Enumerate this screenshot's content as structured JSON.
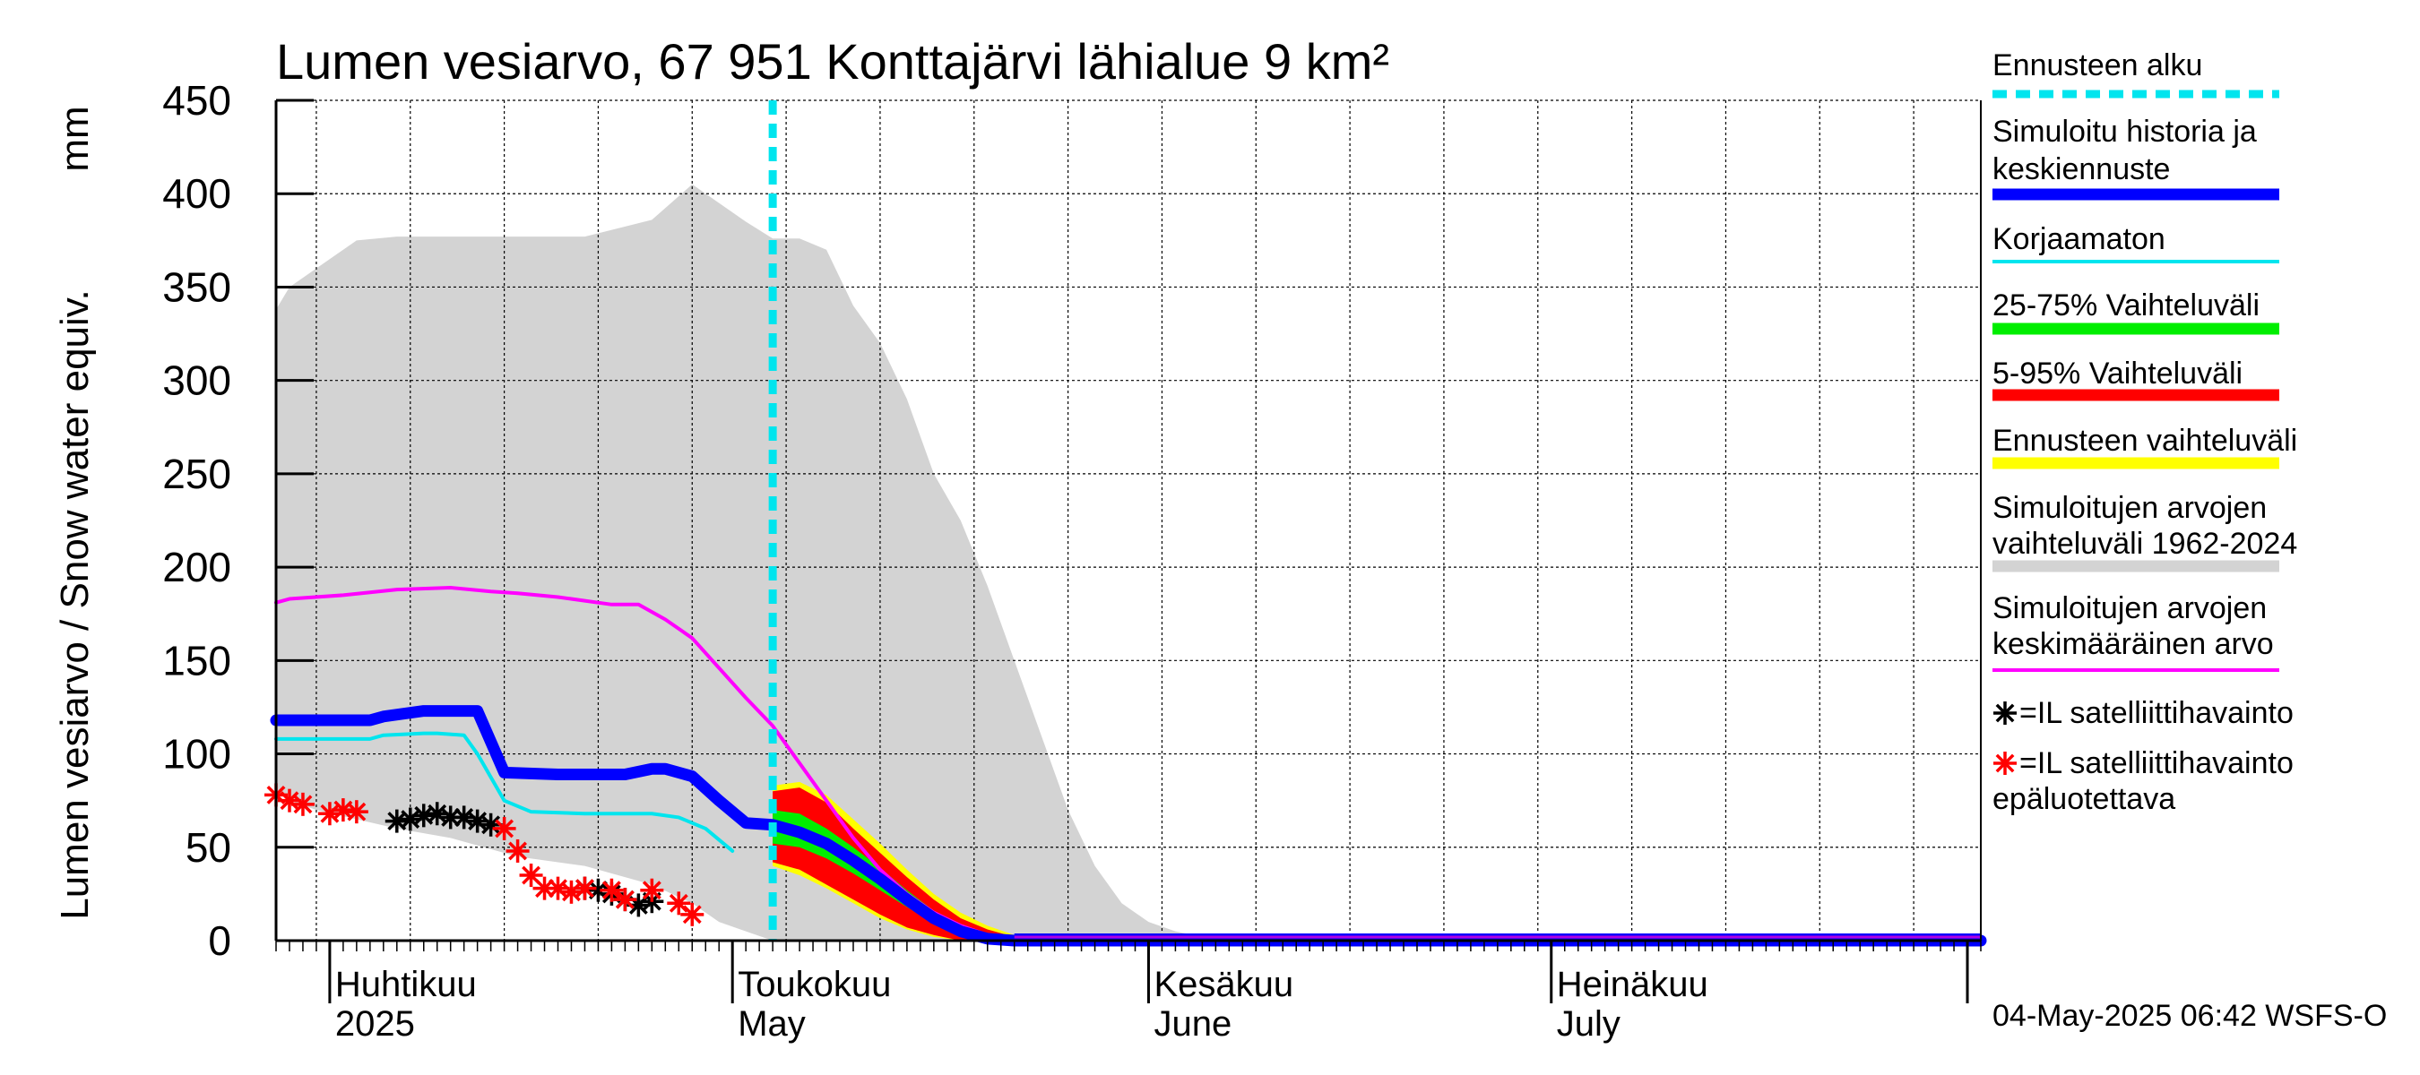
{
  "chart_data": {
    "type": "line",
    "title": "Lumen vesiarvo, 67 951 Konttajärvi lähialue 9 km²",
    "ylabel": "Lumen vesiarvo / Snow water equiv.",
    "yunit": "mm",
    "ylim": [
      0,
      450
    ],
    "yticks": [
      0,
      50,
      100,
      150,
      200,
      250,
      300,
      350,
      400,
      450
    ],
    "xlim": [
      "2025-03-28",
      "2025-08-02"
    ],
    "grid": true,
    "legend_position": "right",
    "xtick_labels": [
      {
        "date": "2025-04-01",
        "line1": "Huhtikuu",
        "line2": "2025"
      },
      {
        "date": "2025-05-01",
        "line1": "Toukokuu",
        "line2": "May"
      },
      {
        "date": "2025-06-01",
        "line1": "Kesäkuu",
        "line2": "June"
      },
      {
        "date": "2025-07-01",
        "line1": "Heinäkuu",
        "line2": "July"
      }
    ],
    "forecast_start": "2025-05-04",
    "historical_range": {
      "name": "Simuloitujen arvojen vaihteluväli 1962-2024",
      "color": "#d3d3d3",
      "dates": [
        "2025-03-28",
        "2025-03-29",
        "2025-03-31",
        "2025-04-03",
        "2025-04-06",
        "2025-04-10",
        "2025-04-15",
        "2025-04-20",
        "2025-04-25",
        "2025-04-28",
        "2025-04-30",
        "2025-05-02",
        "2025-05-04",
        "2025-05-06",
        "2025-05-08",
        "2025-05-10",
        "2025-05-12",
        "2025-05-14",
        "2025-05-16",
        "2025-05-18",
        "2025-05-20",
        "2025-05-22",
        "2025-05-24",
        "2025-05-26",
        "2025-05-28",
        "2025-05-30",
        "2025-06-01",
        "2025-06-03",
        "2025-06-05",
        "2025-06-07",
        "2025-06-10",
        "2025-06-20",
        "2025-07-01",
        "2025-08-02"
      ],
      "upper": [
        338,
        350,
        360,
        375,
        377,
        377,
        377,
        377,
        386,
        405,
        395,
        385,
        376,
        376,
        370,
        340,
        320,
        290,
        250,
        225,
        190,
        150,
        110,
        70,
        40,
        20,
        10,
        5,
        2,
        0,
        0,
        0,
        0,
        0
      ],
      "lower": [
        80,
        75,
        70,
        65,
        60,
        55,
        45,
        40,
        30,
        20,
        10,
        5,
        0,
        0,
        0,
        0,
        0,
        0,
        0,
        0,
        0,
        0,
        0,
        0,
        0,
        0,
        0,
        0,
        0,
        0,
        0,
        0,
        0,
        0
      ]
    },
    "series": [
      {
        "name": "Simuloitu historia ja keskiennuste",
        "color": "#0000ff",
        "dates": [
          "2025-03-28",
          "2025-04-01",
          "2025-04-04",
          "2025-04-05",
          "2025-04-08",
          "2025-04-09",
          "2025-04-11",
          "2025-04-12",
          "2025-04-14",
          "2025-04-18",
          "2025-04-23",
          "2025-04-25",
          "2025-04-26",
          "2025-04-28",
          "2025-04-30",
          "2025-05-02",
          "2025-05-04",
          "2025-05-06",
          "2025-05-08",
          "2025-05-10",
          "2025-05-12",
          "2025-05-14",
          "2025-05-16",
          "2025-05-18",
          "2025-05-20",
          "2025-05-22",
          "2025-08-02"
        ],
        "values": [
          118,
          118,
          118,
          120,
          123,
          123,
          123,
          123,
          90,
          89,
          89,
          92,
          92,
          88,
          75,
          63,
          62,
          58,
          52,
          43,
          33,
          22,
          12,
          5,
          1,
          0,
          0
        ]
      },
      {
        "name": "Korjaamaton",
        "color": "#00e5ee",
        "dates": [
          "2025-03-28",
          "2025-04-04",
          "2025-04-05",
          "2025-04-08",
          "2025-04-09",
          "2025-04-11",
          "2025-04-12",
          "2025-04-14",
          "2025-04-16",
          "2025-04-20",
          "2025-04-25",
          "2025-04-27",
          "2025-04-29",
          "2025-05-01"
        ],
        "values": [
          108,
          108,
          110,
          111,
          111,
          110,
          100,
          75,
          69,
          68,
          68,
          66,
          60,
          48
        ]
      },
      {
        "name": "Simuloitujen arvojen keskimääräinen arvo",
        "color": "#ff00ff",
        "dates": [
          "2025-03-28",
          "2025-03-29",
          "2025-04-02",
          "2025-04-06",
          "2025-04-10",
          "2025-04-13",
          "2025-04-15",
          "2025-04-18",
          "2025-04-22",
          "2025-04-24",
          "2025-04-26",
          "2025-04-28",
          "2025-05-02",
          "2025-05-04",
          "2025-05-06",
          "2025-05-08",
          "2025-05-10",
          "2025-05-12",
          "2025-05-14",
          "2025-05-16",
          "2025-05-18",
          "2025-05-20",
          "2025-05-22",
          "2025-05-24",
          "2025-08-02"
        ],
        "values": [
          181,
          183,
          185,
          188,
          189,
          187,
          186,
          184,
          180,
          180,
          172,
          162,
          130,
          115,
          95,
          75,
          55,
          38,
          25,
          15,
          8,
          3,
          1,
          0,
          0
        ]
      },
      {
        "name": "Ennusteen vaihteluväli",
        "color": "#ffff00",
        "type": "band",
        "dates": [
          "2025-05-04",
          "2025-05-06",
          "2025-05-08",
          "2025-05-10",
          "2025-05-12",
          "2025-05-14",
          "2025-05-16",
          "2025-05-18",
          "2025-05-20",
          "2025-05-22",
          "2025-05-24"
        ],
        "upper": [
          83,
          85,
          78,
          65,
          52,
          38,
          25,
          15,
          8,
          3,
          0
        ],
        "lower": [
          40,
          35,
          28,
          20,
          12,
          6,
          2,
          0,
          0,
          0,
          0
        ]
      },
      {
        "name": "5-95% Vaihteluväli",
        "color": "#ff0000",
        "type": "band",
        "dates": [
          "2025-05-04",
          "2025-05-06",
          "2025-05-08",
          "2025-05-10",
          "2025-05-12",
          "2025-05-14",
          "2025-05-16",
          "2025-05-18",
          "2025-05-20",
          "2025-05-22",
          "2025-05-24"
        ],
        "upper": [
          80,
          82,
          74,
          60,
          47,
          34,
          22,
          12,
          6,
          2,
          0
        ],
        "lower": [
          42,
          38,
          30,
          22,
          14,
          7,
          3,
          0,
          0,
          0,
          0
        ]
      },
      {
        "name": "25-75% Vaihteluväli",
        "color": "#00ee00",
        "type": "band",
        "dates": [
          "2025-05-04",
          "2025-05-06",
          "2025-05-08",
          "2025-05-10",
          "2025-05-12",
          "2025-05-14",
          "2025-05-16",
          "2025-05-18",
          "2025-05-20",
          "2025-05-22"
        ],
        "upper": [
          70,
          68,
          60,
          50,
          39,
          27,
          16,
          8,
          2,
          0
        ],
        "lower": [
          52,
          50,
          44,
          36,
          27,
          18,
          9,
          3,
          0,
          0
        ]
      },
      {
        "name": "=IL satelliittihavainto",
        "color": "#000000",
        "type": "scatter",
        "dates": [
          "2025-04-06",
          "2025-04-07",
          "2025-04-08",
          "2025-04-09",
          "2025-04-10",
          "2025-04-11",
          "2025-04-12",
          "2025-04-13",
          "2025-04-20",
          "2025-04-21",
          "2025-04-22",
          "2025-04-23",
          "2025-04-24",
          "2025-04-25"
        ],
        "values": [
          64,
          65,
          67,
          68,
          66,
          66,
          64,
          62,
          28,
          27,
          25,
          22,
          19,
          21
        ]
      },
      {
        "name": "=IL satelliittihavainto epäluotettava",
        "color": "#ff0000",
        "type": "scatter",
        "dates": [
          "2025-03-28",
          "2025-03-29",
          "2025-03-30",
          "2025-04-01",
          "2025-04-02",
          "2025-04-03",
          "2025-04-14",
          "2025-04-15",
          "2025-04-16",
          "2025-04-17",
          "2025-04-18",
          "2025-04-19",
          "2025-04-20",
          "2025-04-22",
          "2025-04-23",
          "2025-04-25",
          "2025-04-27",
          "2025-04-28"
        ],
        "values": [
          78,
          75,
          73,
          68,
          70,
          69,
          60,
          48,
          35,
          28,
          28,
          26,
          28,
          27,
          22,
          27,
          20,
          14
        ]
      }
    ]
  },
  "legend": {
    "items": [
      {
        "key": "forecast_start",
        "lines": [
          "Ennusteen alku"
        ],
        "color": "#00e5ee",
        "style": "dashed"
      },
      {
        "key": "sim",
        "lines": [
          "Simuloitu historia ja",
          "keskiennuste"
        ],
        "color": "#0000ff",
        "style": "thick"
      },
      {
        "key": "uncorrected",
        "lines": [
          "Korjaamaton"
        ],
        "color": "#00e5ee",
        "style": "thin"
      },
      {
        "key": "p25_75",
        "lines": [
          "25-75% Vaihteluväli"
        ],
        "color": "#00ee00",
        "style": "thick"
      },
      {
        "key": "p5_95",
        "lines": [
          "5-95% Vaihteluväli"
        ],
        "color": "#ff0000",
        "style": "thick"
      },
      {
        "key": "fc_range",
        "lines": [
          "Ennusteen vaihteluväli"
        ],
        "color": "#ffff00",
        "style": "thick"
      },
      {
        "key": "hist_range",
        "lines": [
          "Simuloitujen arvojen",
          "vaihteluväli 1962-2024"
        ],
        "color": "#d3d3d3",
        "style": "thick"
      },
      {
        "key": "hist_mean",
        "lines": [
          "Simuloitujen arvojen",
          "keskimääräinen arvo"
        ],
        "color": "#ff00ff",
        "style": "thin"
      }
    ],
    "markers": [
      {
        "key": "sat",
        "lines": [
          "=IL satelliittihavainto"
        ],
        "color": "#000000"
      },
      {
        "key": "sat_unreliable",
        "lines": [
          "=IL satelliittihavainto",
          "epäluotettava"
        ],
        "color": "#ff0000"
      }
    ]
  },
  "timestamp": "04-May-2025 06:42 WSFS-O"
}
